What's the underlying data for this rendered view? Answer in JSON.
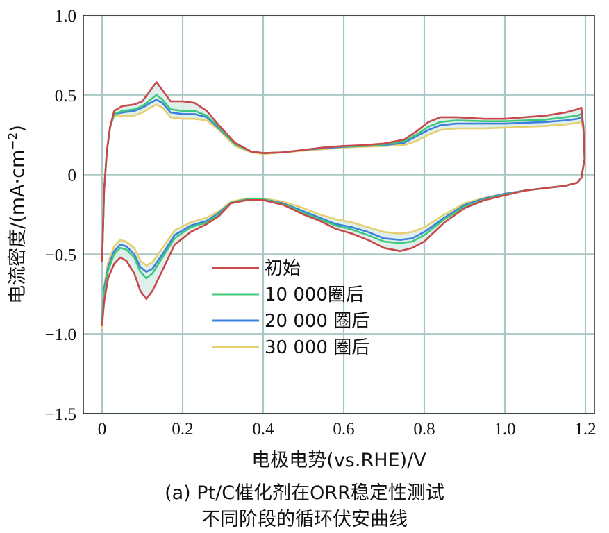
{
  "chart_data": {
    "type": "line",
    "title": "",
    "xlabel": "电极电势(vs.RHE)/V",
    "ylabel_main": "电流密度/(mA·cm",
    "ylabel_sup": "−2",
    "ylabel_end": ")",
    "xlim": [
      -0.02,
      1.23
    ],
    "ylim": [
      -1.5,
      1.0
    ],
    "xticks": [
      0,
      0.2,
      0.4,
      0.6,
      0.8,
      1.0,
      1.2
    ],
    "xtick_labels": [
      "0",
      "0.2",
      "0.4",
      "0.6",
      "0.8",
      "1.0",
      "1.2"
    ],
    "yticks": [
      1.0,
      0.5,
      0,
      -0.5,
      -1.0,
      -1.5
    ],
    "ytick_labels": [
      "1.0",
      "0.5",
      "0",
      "−0.5",
      "−1.0",
      "−1.5"
    ],
    "grid": true,
    "legend_position": "lower-left",
    "series": [
      {
        "name": "初始",
        "color": "#c8484b",
        "anodic": [
          [
            0.0,
            -0.55
          ],
          [
            0.005,
            -0.1
          ],
          [
            0.012,
            0.15
          ],
          [
            0.02,
            0.3
          ],
          [
            0.03,
            0.4
          ],
          [
            0.05,
            0.43
          ],
          [
            0.08,
            0.44
          ],
          [
            0.1,
            0.46
          ],
          [
            0.12,
            0.53
          ],
          [
            0.135,
            0.58
          ],
          [
            0.15,
            0.53
          ],
          [
            0.17,
            0.46
          ],
          [
            0.2,
            0.46
          ],
          [
            0.23,
            0.45
          ],
          [
            0.26,
            0.4
          ],
          [
            0.29,
            0.31
          ],
          [
            0.33,
            0.2
          ],
          [
            0.37,
            0.145
          ],
          [
            0.4,
            0.135
          ],
          [
            0.45,
            0.14
          ],
          [
            0.5,
            0.155
          ],
          [
            0.55,
            0.17
          ],
          [
            0.6,
            0.18
          ],
          [
            0.65,
            0.185
          ],
          [
            0.7,
            0.195
          ],
          [
            0.75,
            0.22
          ],
          [
            0.78,
            0.27
          ],
          [
            0.81,
            0.33
          ],
          [
            0.84,
            0.36
          ],
          [
            0.88,
            0.36
          ],
          [
            0.95,
            0.35
          ],
          [
            1.0,
            0.35
          ],
          [
            1.1,
            0.37
          ],
          [
            1.15,
            0.39
          ],
          [
            1.18,
            0.41
          ],
          [
            1.19,
            0.42
          ],
          [
            1.195,
            0.3
          ],
          [
            1.198,
            0.1
          ]
        ],
        "cathodic": [
          [
            1.198,
            0.1
          ],
          [
            1.19,
            -0.02
          ],
          [
            1.18,
            -0.05
          ],
          [
            1.15,
            -0.07
          ],
          [
            1.1,
            -0.085
          ],
          [
            1.05,
            -0.1
          ],
          [
            1.0,
            -0.13
          ],
          [
            0.95,
            -0.16
          ],
          [
            0.9,
            -0.21
          ],
          [
            0.85,
            -0.3
          ],
          [
            0.8,
            -0.42
          ],
          [
            0.77,
            -0.46
          ],
          [
            0.74,
            -0.48
          ],
          [
            0.7,
            -0.46
          ],
          [
            0.66,
            -0.41
          ],
          [
            0.62,
            -0.37
          ],
          [
            0.58,
            -0.34
          ],
          [
            0.54,
            -0.29
          ],
          [
            0.5,
            -0.25
          ],
          [
            0.45,
            -0.19
          ],
          [
            0.4,
            -0.16
          ],
          [
            0.36,
            -0.16
          ],
          [
            0.32,
            -0.18
          ],
          [
            0.29,
            -0.26
          ],
          [
            0.26,
            -0.31
          ],
          [
            0.22,
            -0.36
          ],
          [
            0.18,
            -0.44
          ],
          [
            0.15,
            -0.6
          ],
          [
            0.125,
            -0.73
          ],
          [
            0.11,
            -0.78
          ],
          [
            0.095,
            -0.73
          ],
          [
            0.08,
            -0.62
          ],
          [
            0.06,
            -0.54
          ],
          [
            0.045,
            -0.52
          ],
          [
            0.03,
            -0.56
          ],
          [
            0.015,
            -0.65
          ],
          [
            0.005,
            -0.8
          ],
          [
            0.0,
            -0.95
          ]
        ]
      },
      {
        "name": "10 000圈后",
        "color": "#3ec97a",
        "anodic": [
          [
            0.0,
            -0.55
          ],
          [
            0.005,
            -0.1
          ],
          [
            0.012,
            0.15
          ],
          [
            0.02,
            0.3
          ],
          [
            0.03,
            0.38
          ],
          [
            0.05,
            0.4
          ],
          [
            0.08,
            0.41
          ],
          [
            0.1,
            0.43
          ],
          [
            0.12,
            0.47
          ],
          [
            0.135,
            0.5
          ],
          [
            0.15,
            0.47
          ],
          [
            0.17,
            0.41
          ],
          [
            0.2,
            0.4
          ],
          [
            0.23,
            0.4
          ],
          [
            0.26,
            0.37
          ],
          [
            0.29,
            0.3
          ],
          [
            0.33,
            0.19
          ],
          [
            0.37,
            0.145
          ],
          [
            0.4,
            0.135
          ],
          [
            0.45,
            0.14
          ],
          [
            0.5,
            0.155
          ],
          [
            0.55,
            0.17
          ],
          [
            0.6,
            0.178
          ],
          [
            0.65,
            0.18
          ],
          [
            0.7,
            0.19
          ],
          [
            0.75,
            0.21
          ],
          [
            0.78,
            0.25
          ],
          [
            0.81,
            0.3
          ],
          [
            0.84,
            0.33
          ],
          [
            0.88,
            0.34
          ],
          [
            0.95,
            0.335
          ],
          [
            1.0,
            0.335
          ],
          [
            1.1,
            0.345
          ],
          [
            1.15,
            0.36
          ],
          [
            1.18,
            0.37
          ],
          [
            1.19,
            0.38
          ],
          [
            1.195,
            0.3
          ],
          [
            1.198,
            0.1
          ]
        ],
        "cathodic": [
          [
            1.198,
            0.1
          ],
          [
            1.19,
            -0.02
          ],
          [
            1.18,
            -0.05
          ],
          [
            1.15,
            -0.07
          ],
          [
            1.1,
            -0.085
          ],
          [
            1.05,
            -0.1
          ],
          [
            1.0,
            -0.125
          ],
          [
            0.95,
            -0.155
          ],
          [
            0.9,
            -0.2
          ],
          [
            0.85,
            -0.28
          ],
          [
            0.8,
            -0.38
          ],
          [
            0.77,
            -0.42
          ],
          [
            0.74,
            -0.43
          ],
          [
            0.7,
            -0.42
          ],
          [
            0.66,
            -0.38
          ],
          [
            0.62,
            -0.345
          ],
          [
            0.58,
            -0.32
          ],
          [
            0.54,
            -0.28
          ],
          [
            0.5,
            -0.24
          ],
          [
            0.45,
            -0.185
          ],
          [
            0.4,
            -0.155
          ],
          [
            0.36,
            -0.155
          ],
          [
            0.32,
            -0.175
          ],
          [
            0.29,
            -0.25
          ],
          [
            0.26,
            -0.3
          ],
          [
            0.22,
            -0.33
          ],
          [
            0.18,
            -0.4
          ],
          [
            0.15,
            -0.52
          ],
          [
            0.125,
            -0.62
          ],
          [
            0.11,
            -0.65
          ],
          [
            0.095,
            -0.61
          ],
          [
            0.08,
            -0.52
          ],
          [
            0.06,
            -0.47
          ],
          [
            0.045,
            -0.46
          ],
          [
            0.03,
            -0.5
          ],
          [
            0.015,
            -0.6
          ],
          [
            0.005,
            -0.75
          ],
          [
            0.0,
            -0.93
          ]
        ]
      },
      {
        "name": "20 000 圈后",
        "color": "#3c7fe0",
        "anodic": [
          [
            0.0,
            -0.55
          ],
          [
            0.005,
            -0.1
          ],
          [
            0.012,
            0.15
          ],
          [
            0.02,
            0.3
          ],
          [
            0.03,
            0.38
          ],
          [
            0.05,
            0.39
          ],
          [
            0.08,
            0.4
          ],
          [
            0.1,
            0.42
          ],
          [
            0.12,
            0.45
          ],
          [
            0.135,
            0.47
          ],
          [
            0.15,
            0.45
          ],
          [
            0.17,
            0.39
          ],
          [
            0.2,
            0.38
          ],
          [
            0.23,
            0.38
          ],
          [
            0.26,
            0.36
          ],
          [
            0.29,
            0.29
          ],
          [
            0.33,
            0.19
          ],
          [
            0.37,
            0.145
          ],
          [
            0.4,
            0.135
          ],
          [
            0.45,
            0.14
          ],
          [
            0.5,
            0.155
          ],
          [
            0.55,
            0.165
          ],
          [
            0.6,
            0.175
          ],
          [
            0.65,
            0.18
          ],
          [
            0.7,
            0.185
          ],
          [
            0.75,
            0.2
          ],
          [
            0.78,
            0.24
          ],
          [
            0.81,
            0.28
          ],
          [
            0.84,
            0.31
          ],
          [
            0.88,
            0.32
          ],
          [
            0.95,
            0.32
          ],
          [
            1.0,
            0.32
          ],
          [
            1.1,
            0.33
          ],
          [
            1.15,
            0.34
          ],
          [
            1.18,
            0.35
          ],
          [
            1.19,
            0.36
          ],
          [
            1.195,
            0.3
          ],
          [
            1.198,
            0.1
          ]
        ],
        "cathodic": [
          [
            1.198,
            0.1
          ],
          [
            1.19,
            -0.02
          ],
          [
            1.18,
            -0.05
          ],
          [
            1.15,
            -0.07
          ],
          [
            1.1,
            -0.085
          ],
          [
            1.05,
            -0.1
          ],
          [
            1.0,
            -0.12
          ],
          [
            0.95,
            -0.15
          ],
          [
            0.9,
            -0.19
          ],
          [
            0.85,
            -0.27
          ],
          [
            0.8,
            -0.36
          ],
          [
            0.77,
            -0.4
          ],
          [
            0.74,
            -0.41
          ],
          [
            0.7,
            -0.4
          ],
          [
            0.66,
            -0.36
          ],
          [
            0.62,
            -0.33
          ],
          [
            0.58,
            -0.31
          ],
          [
            0.54,
            -0.27
          ],
          [
            0.5,
            -0.23
          ],
          [
            0.45,
            -0.18
          ],
          [
            0.4,
            -0.155
          ],
          [
            0.36,
            -0.155
          ],
          [
            0.32,
            -0.175
          ],
          [
            0.29,
            -0.24
          ],
          [
            0.26,
            -0.29
          ],
          [
            0.22,
            -0.32
          ],
          [
            0.18,
            -0.38
          ],
          [
            0.15,
            -0.5
          ],
          [
            0.125,
            -0.59
          ],
          [
            0.11,
            -0.61
          ],
          [
            0.095,
            -0.58
          ],
          [
            0.08,
            -0.5
          ],
          [
            0.06,
            -0.45
          ],
          [
            0.045,
            -0.44
          ],
          [
            0.03,
            -0.48
          ],
          [
            0.015,
            -0.58
          ],
          [
            0.005,
            -0.72
          ],
          [
            0.0,
            -0.92
          ]
        ]
      },
      {
        "name": "30 000 圈后",
        "color": "#e6cf6e",
        "anodic": [
          [
            0.0,
            -0.55
          ],
          [
            0.005,
            -0.1
          ],
          [
            0.012,
            0.15
          ],
          [
            0.02,
            0.3
          ],
          [
            0.03,
            0.37
          ],
          [
            0.05,
            0.37
          ],
          [
            0.08,
            0.37
          ],
          [
            0.1,
            0.39
          ],
          [
            0.12,
            0.42
          ],
          [
            0.135,
            0.44
          ],
          [
            0.15,
            0.42
          ],
          [
            0.17,
            0.36
          ],
          [
            0.2,
            0.35
          ],
          [
            0.23,
            0.35
          ],
          [
            0.26,
            0.34
          ],
          [
            0.29,
            0.28
          ],
          [
            0.33,
            0.18
          ],
          [
            0.37,
            0.14
          ],
          [
            0.4,
            0.13
          ],
          [
            0.45,
            0.14
          ],
          [
            0.5,
            0.15
          ],
          [
            0.55,
            0.16
          ],
          [
            0.6,
            0.17
          ],
          [
            0.65,
            0.175
          ],
          [
            0.7,
            0.18
          ],
          [
            0.75,
            0.185
          ],
          [
            0.78,
            0.21
          ],
          [
            0.81,
            0.25
          ],
          [
            0.84,
            0.28
          ],
          [
            0.88,
            0.29
          ],
          [
            0.95,
            0.29
          ],
          [
            1.0,
            0.295
          ],
          [
            1.1,
            0.305
          ],
          [
            1.15,
            0.315
          ],
          [
            1.18,
            0.325
          ],
          [
            1.19,
            0.33
          ],
          [
            1.195,
            0.28
          ],
          [
            1.198,
            0.1
          ]
        ],
        "cathodic": [
          [
            1.198,
            0.1
          ],
          [
            1.19,
            -0.02
          ],
          [
            1.18,
            -0.05
          ],
          [
            1.15,
            -0.07
          ],
          [
            1.1,
            -0.085
          ],
          [
            1.05,
            -0.1
          ],
          [
            1.0,
            -0.12
          ],
          [
            0.95,
            -0.145
          ],
          [
            0.9,
            -0.18
          ],
          [
            0.85,
            -0.25
          ],
          [
            0.8,
            -0.33
          ],
          [
            0.77,
            -0.36
          ],
          [
            0.74,
            -0.37
          ],
          [
            0.7,
            -0.36
          ],
          [
            0.66,
            -0.33
          ],
          [
            0.62,
            -0.3
          ],
          [
            0.58,
            -0.28
          ],
          [
            0.54,
            -0.25
          ],
          [
            0.5,
            -0.21
          ],
          [
            0.45,
            -0.17
          ],
          [
            0.4,
            -0.15
          ],
          [
            0.36,
            -0.15
          ],
          [
            0.32,
            -0.17
          ],
          [
            0.29,
            -0.23
          ],
          [
            0.26,
            -0.27
          ],
          [
            0.22,
            -0.3
          ],
          [
            0.18,
            -0.35
          ],
          [
            0.15,
            -0.46
          ],
          [
            0.125,
            -0.55
          ],
          [
            0.11,
            -0.57
          ],
          [
            0.095,
            -0.54
          ],
          [
            0.08,
            -0.46
          ],
          [
            0.06,
            -0.42
          ],
          [
            0.045,
            -0.41
          ],
          [
            0.03,
            -0.45
          ],
          [
            0.015,
            -0.55
          ],
          [
            0.005,
            -0.7
          ],
          [
            0.0,
            -0.97
          ]
        ]
      }
    ],
    "caption_line1": "(a) Pt/C催化剂在ORR稳定性测试",
    "caption_line2": "不同阶段的循环伏安曲线"
  }
}
